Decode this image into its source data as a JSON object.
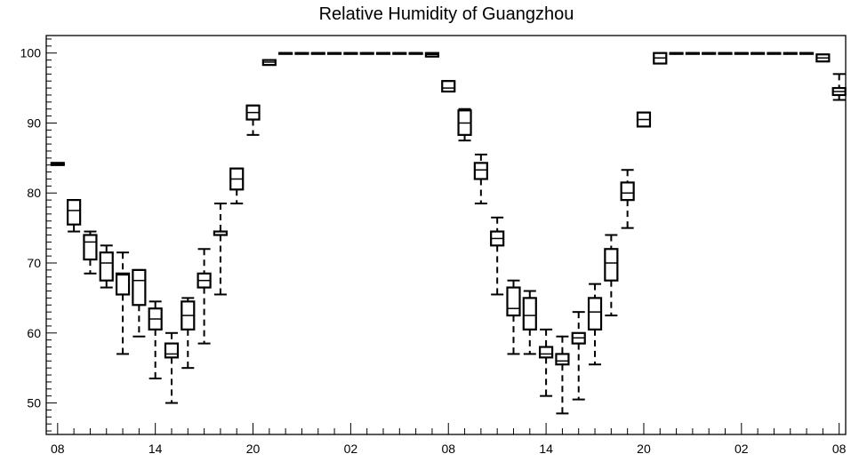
{
  "chart_data": {
    "type": "box",
    "title": "Relative Humidity of Guangzhou",
    "xlabel": "",
    "ylabel": "",
    "ylim": [
      45.5,
      102.5
    ],
    "y_ticks": [
      50,
      60,
      70,
      80,
      90,
      100
    ],
    "x_tick_labels": [
      "08",
      "14",
      "20",
      "02",
      "08",
      "14",
      "20",
      "02",
      "08"
    ],
    "x_tick_hours": [
      0,
      6,
      12,
      18,
      24,
      30,
      36,
      42,
      48
    ],
    "xlim": [
      -0.7,
      48.4
    ],
    "grid": false,
    "boxes": [
      {
        "x": 0,
        "min": 84.0,
        "q1": 84.0,
        "median": 84.1,
        "q3": 84.3,
        "max": 84.3
      },
      {
        "x": 1,
        "min": 74.5,
        "q1": 75.5,
        "median": 77.5,
        "q3": 79.0,
        "max": 79.0
      },
      {
        "x": 2,
        "min": 68.5,
        "q1": 70.5,
        "median": 73.0,
        "q3": 74.0,
        "max": 74.5
      },
      {
        "x": 3,
        "min": 66.5,
        "q1": 67.5,
        "median": 70.0,
        "q3": 71.5,
        "max": 72.5
      },
      {
        "x": 4,
        "min": 57.0,
        "q1": 65.5,
        "median": 68.3,
        "q3": 68.5,
        "max": 71.5
      },
      {
        "x": 5,
        "min": 59.5,
        "q1": 64.0,
        "median": 67.5,
        "q3": 69.0,
        "max": 69.0
      },
      {
        "x": 6,
        "min": 53.5,
        "q1": 60.5,
        "median": 62.0,
        "q3": 63.5,
        "max": 64.5
      },
      {
        "x": 7,
        "min": 50.0,
        "q1": 56.5,
        "median": 57.0,
        "q3": 58.5,
        "max": 60.0
      },
      {
        "x": 8,
        "min": 55.0,
        "q1": 60.5,
        "median": 62.5,
        "q3": 64.5,
        "max": 65.0
      },
      {
        "x": 9,
        "min": 58.5,
        "q1": 66.5,
        "median": 67.5,
        "q3": 68.5,
        "max": 72.0
      },
      {
        "x": 10,
        "min": 65.5,
        "q1": 74.0,
        "median": 74.5,
        "q3": 74.5,
        "max": 78.5
      },
      {
        "x": 11,
        "min": 78.5,
        "q1": 80.5,
        "median": 82.0,
        "q3": 83.5,
        "max": 83.5
      },
      {
        "x": 12,
        "min": 88.3,
        "q1": 90.5,
        "median": 91.5,
        "q3": 92.5,
        "max": 92.5
      },
      {
        "x": 13,
        "min": 98.3,
        "q1": 98.3,
        "median": 98.7,
        "q3": 99.0,
        "max": 99.0
      },
      {
        "x": 14,
        "min": 100,
        "q1": 100,
        "median": 100,
        "q3": 100,
        "max": 100
      },
      {
        "x": 15,
        "min": 100,
        "q1": 100,
        "median": 100,
        "q3": 100,
        "max": 100
      },
      {
        "x": 16,
        "min": 100,
        "q1": 100,
        "median": 100,
        "q3": 100,
        "max": 100
      },
      {
        "x": 17,
        "min": 100,
        "q1": 100,
        "median": 100,
        "q3": 100,
        "max": 100
      },
      {
        "x": 18,
        "min": 100,
        "q1": 100,
        "median": 100,
        "q3": 100,
        "max": 100
      },
      {
        "x": 19,
        "min": 100,
        "q1": 100,
        "median": 100,
        "q3": 100,
        "max": 100
      },
      {
        "x": 20,
        "min": 100,
        "q1": 100,
        "median": 100,
        "q3": 100,
        "max": 100
      },
      {
        "x": 21,
        "min": 100,
        "q1": 100,
        "median": 100,
        "q3": 100,
        "max": 100
      },
      {
        "x": 22,
        "min": 100,
        "q1": 100,
        "median": 100,
        "q3": 100,
        "max": 100
      },
      {
        "x": 23,
        "min": 99.5,
        "q1": 99.5,
        "median": 99.8,
        "q3": 100,
        "max": 100
      },
      {
        "x": 24,
        "min": 94.5,
        "q1": 94.5,
        "median": 95.0,
        "q3": 96.0,
        "max": 96.0
      },
      {
        "x": 25,
        "min": 87.5,
        "q1": 88.3,
        "median": 90.0,
        "q3": 91.8,
        "max": 92.0
      },
      {
        "x": 26,
        "min": 78.5,
        "q1": 82.0,
        "median": 83.3,
        "q3": 84.3,
        "max": 85.5
      },
      {
        "x": 27,
        "min": 65.5,
        "q1": 72.5,
        "median": 73.5,
        "q3": 74.5,
        "max": 76.5
      },
      {
        "x": 28,
        "min": 57.0,
        "q1": 62.5,
        "median": 63.5,
        "q3": 66.5,
        "max": 67.5
      },
      {
        "x": 29,
        "min": 57.0,
        "q1": 60.5,
        "median": 62.5,
        "q3": 65.0,
        "max": 66.0
      },
      {
        "x": 30,
        "min": 51.0,
        "q1": 56.5,
        "median": 57.0,
        "q3": 58.0,
        "max": 60.5
      },
      {
        "x": 31,
        "min": 48.5,
        "q1": 55.5,
        "median": 56.0,
        "q3": 57.0,
        "max": 59.5
      },
      {
        "x": 32,
        "min": 50.5,
        "q1": 58.5,
        "median": 59.3,
        "q3": 60.0,
        "max": 63.0
      },
      {
        "x": 33,
        "min": 55.5,
        "q1": 60.5,
        "median": 63.0,
        "q3": 65.0,
        "max": 67.0
      },
      {
        "x": 34,
        "min": 62.5,
        "q1": 67.5,
        "median": 70.0,
        "q3": 72.0,
        "max": 74.0
      },
      {
        "x": 35,
        "min": 75.0,
        "q1": 79.0,
        "median": 80.0,
        "q3": 81.5,
        "max": 83.3
      },
      {
        "x": 36,
        "min": 89.5,
        "q1": 89.5,
        "median": 90.5,
        "q3": 91.5,
        "max": 91.5
      },
      {
        "x": 37,
        "min": 98.5,
        "q1": 98.5,
        "median": 99.3,
        "q3": 100,
        "max": 100
      },
      {
        "x": 38,
        "min": 100,
        "q1": 100,
        "median": 100,
        "q3": 100,
        "max": 100
      },
      {
        "x": 39,
        "min": 100,
        "q1": 100,
        "median": 100,
        "q3": 100,
        "max": 100
      },
      {
        "x": 40,
        "min": 100,
        "q1": 100,
        "median": 100,
        "q3": 100,
        "max": 100
      },
      {
        "x": 41,
        "min": 100,
        "q1": 100,
        "median": 100,
        "q3": 100,
        "max": 100
      },
      {
        "x": 42,
        "min": 100,
        "q1": 100,
        "median": 100,
        "q3": 100,
        "max": 100
      },
      {
        "x": 43,
        "min": 100,
        "q1": 100,
        "median": 100,
        "q3": 100,
        "max": 100
      },
      {
        "x": 44,
        "min": 100,
        "q1": 100,
        "median": 100,
        "q3": 100,
        "max": 100
      },
      {
        "x": 45,
        "min": 100,
        "q1": 100,
        "median": 100,
        "q3": 100,
        "max": 100
      },
      {
        "x": 46,
        "min": 100,
        "q1": 100,
        "median": 100,
        "q3": 100,
        "max": 100
      },
      {
        "x": 47,
        "min": 98.8,
        "q1": 98.8,
        "median": 99.3,
        "q3": 99.8,
        "max": 99.8
      },
      {
        "x": 48,
        "min": 93.3,
        "q1": 94.0,
        "median": 94.5,
        "q3": 95.0,
        "max": 97.0
      }
    ]
  }
}
